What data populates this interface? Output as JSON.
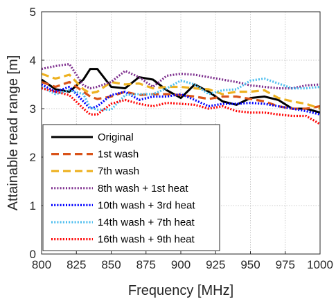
{
  "chart_data": {
    "type": "line",
    "title": "",
    "xlabel": "Frequency [MHz]",
    "ylabel": "Attainable read range [m]",
    "xlim": [
      800,
      1000
    ],
    "ylim": [
      0,
      5
    ],
    "xticks": [
      800,
      825,
      850,
      875,
      900,
      925,
      950,
      975,
      1000
    ],
    "yticks": [
      0,
      1,
      2,
      3,
      4,
      5
    ],
    "grid": true,
    "legend_position": "lower-left",
    "x": [
      800,
      810,
      820,
      830,
      835,
      840,
      850,
      860,
      870,
      880,
      890,
      900,
      910,
      920,
      930,
      940,
      950,
      960,
      970,
      980,
      990,
      1000
    ],
    "series": [
      {
        "name": "Original",
        "color": "#000000",
        "style": "solid",
        "values": [
          3.6,
          3.4,
          3.35,
          3.6,
          3.82,
          3.82,
          3.45,
          3.42,
          3.65,
          3.6,
          3.38,
          3.22,
          3.5,
          3.35,
          3.15,
          3.08,
          3.22,
          3.25,
          3.18,
          3.0,
          3.0,
          2.92
        ]
      },
      {
        "name": "1st wash",
        "color": "#d95319",
        "style": "dashed",
        "values": [
          3.55,
          3.45,
          3.55,
          3.35,
          3.25,
          3.2,
          3.25,
          3.35,
          3.28,
          3.3,
          3.3,
          3.28,
          3.25,
          3.2,
          3.25,
          3.25,
          3.2,
          3.15,
          3.05,
          3.0,
          3.0,
          3.05
        ]
      },
      {
        "name": "7th wash",
        "color": "#edb120",
        "style": "dashed",
        "values": [
          3.72,
          3.62,
          3.7,
          3.4,
          3.32,
          3.35,
          3.55,
          3.5,
          3.52,
          3.42,
          3.45,
          3.45,
          3.42,
          3.4,
          3.3,
          3.35,
          3.35,
          3.38,
          3.22,
          3.15,
          3.1,
          3.0
        ]
      },
      {
        "name": "8th wash + 1st heat",
        "color": "#7e2f8e",
        "style": "dotted",
        "values": [
          3.82,
          3.88,
          3.92,
          3.48,
          3.42,
          3.45,
          3.55,
          3.78,
          3.65,
          3.45,
          3.68,
          3.72,
          3.7,
          3.65,
          3.6,
          3.55,
          3.48,
          3.45,
          3.42,
          3.42,
          3.48,
          3.5
        ]
      },
      {
        "name": "10th wash + 3rd heat",
        "color": "#0000ff",
        "style": "dotted",
        "values": [
          3.5,
          3.35,
          3.45,
          3.15,
          3.0,
          3.05,
          3.28,
          3.35,
          3.18,
          3.25,
          3.25,
          3.3,
          3.18,
          3.05,
          3.1,
          3.1,
          3.12,
          3.1,
          3.05,
          3.0,
          2.95,
          2.88
        ]
      },
      {
        "name": "14th wash + 7th heat",
        "color": "#4dbeee",
        "style": "dotted",
        "values": [
          3.45,
          3.3,
          3.38,
          3.3,
          3.02,
          2.98,
          2.98,
          3.28,
          3.3,
          3.3,
          3.42,
          3.58,
          3.5,
          3.3,
          3.38,
          3.4,
          3.58,
          3.62,
          3.52,
          3.42,
          3.42,
          3.45
        ]
      },
      {
        "name": "16th wash + 9th heat",
        "color": "#ff0000",
        "style": "dotted",
        "values": [
          3.42,
          3.35,
          3.28,
          3.0,
          2.88,
          2.88,
          3.1,
          3.18,
          3.1,
          3.05,
          3.12,
          3.1,
          3.08,
          3.0,
          3.05,
          2.95,
          2.92,
          2.92,
          2.88,
          2.85,
          2.85,
          2.68
        ]
      }
    ]
  }
}
